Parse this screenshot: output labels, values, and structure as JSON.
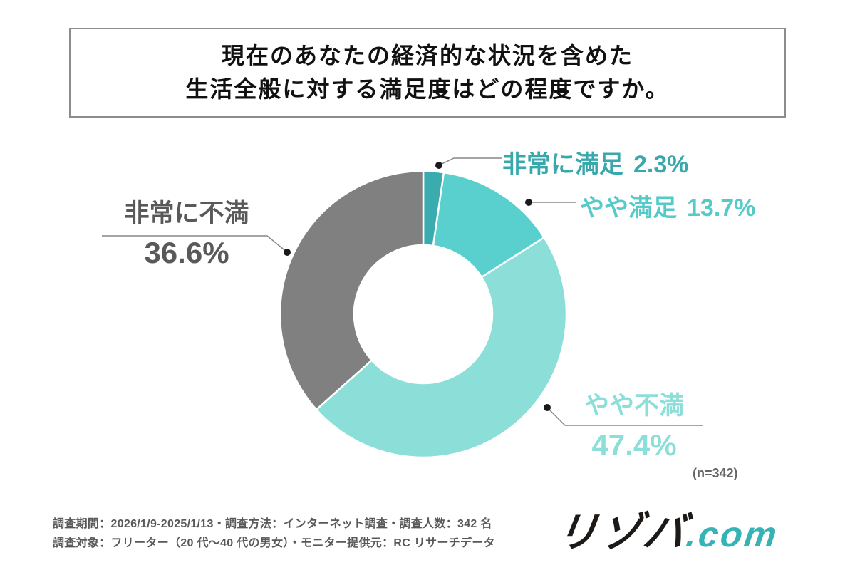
{
  "title": {
    "line1": "現在のあなたの経済的な状況を含めた",
    "line2": "生活全般に対する満足度はどの程度ですか。"
  },
  "chart_data": {
    "type": "pie",
    "donut": true,
    "title": "現在のあなたの経済的な状況を含めた生活全般に対する満足度はどの程度ですか。",
    "start_angle_deg": 0,
    "direction": "clockwise",
    "segments": [
      {
        "label": "非常に満足",
        "value": 2.3,
        "pct_text": "2.3%",
        "color": "#3AACAF",
        "label_color": "#39A8AC"
      },
      {
        "label": "やや満足",
        "value": 13.7,
        "pct_text": "13.7%",
        "color": "#59D0CD",
        "label_color": "#54CBC9"
      },
      {
        "label": "やや不満",
        "value": 47.4,
        "pct_text": "47.4%",
        "color": "#8CDED8",
        "label_color": "#8CDED8"
      },
      {
        "label": "非常に不満",
        "value": 36.6,
        "pct_text": "36.6%",
        "color": "#808080",
        "label_color": "#595959"
      }
    ],
    "n_label": "(n=342)"
  },
  "footer": {
    "line1": "調査期間：2026/1/9-2025/1/13・調査方法：インターネット調査・調査人数：342 名",
    "line2": "調査対象：フリーター（20 代〜40 代の男女）・モニター提供元：RC リサーチデータ"
  },
  "logo": {
    "name": "リゾバ",
    "tld": ".com",
    "accent": "#35B3B5"
  }
}
